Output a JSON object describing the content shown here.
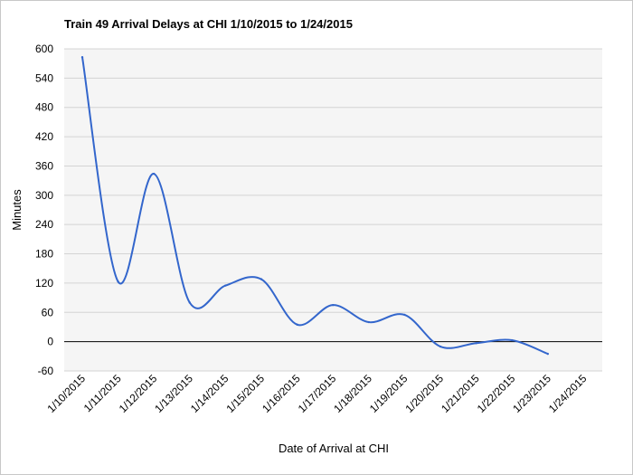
{
  "chart_data": {
    "type": "line",
    "title": "Train 49 Arrival Delays at CHI 1/10/2015 to 1/24/2015",
    "xlabel": "Date of Arrival at CHI",
    "ylabel": "Minutes",
    "categories": [
      "1/10/2015",
      "1/11/2015",
      "1/12/2015",
      "1/13/2015",
      "1/14/2015",
      "1/15/2015",
      "1/16/2015",
      "1/17/2015",
      "1/18/2015",
      "1/19/2015",
      "1/20/2015",
      "1/21/2015",
      "1/22/2015",
      "1/23/2015",
      "1/24/2015"
    ],
    "yticks": [
      600,
      540,
      480,
      420,
      360,
      300,
      240,
      180,
      120,
      60,
      0,
      -60
    ],
    "ylim": [
      -60,
      600
    ],
    "grid": true,
    "series": [
      {
        "values": [
          583,
          123,
          344,
          80,
          115,
          128,
          35,
          75,
          40,
          55,
          -10,
          -3,
          3,
          -25,
          null
        ]
      }
    ],
    "colors": {
      "line": "#3366cc",
      "plot_background": "#f5f5f5",
      "gridline": "#d4d4d4",
      "zero_line": "#000000"
    }
  }
}
